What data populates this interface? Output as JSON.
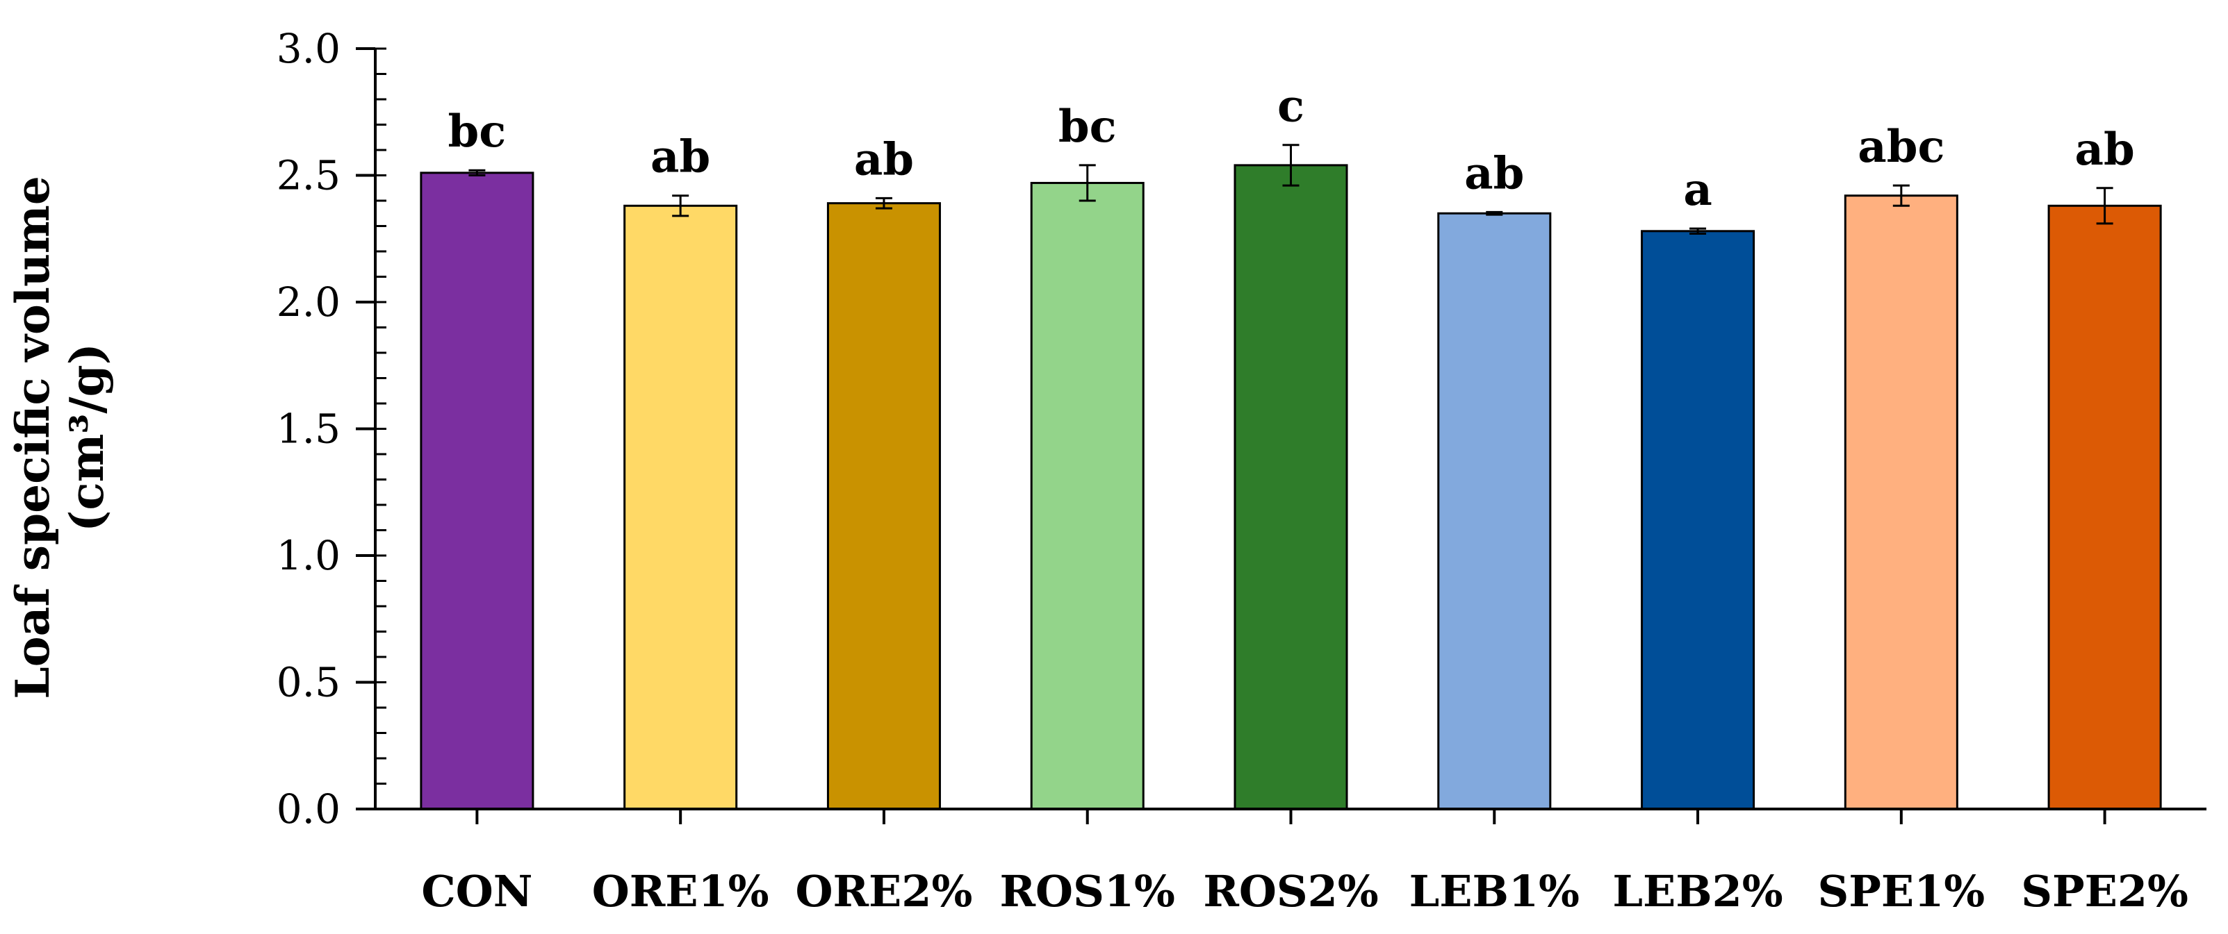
{
  "chart_data": {
    "type": "bar",
    "title": "",
    "xlabel": "",
    "ylabel": "Loaf specific volume",
    "ylabel_line2": "(cm³/g)",
    "ylim": [
      0,
      3.0
    ],
    "yticks": [
      "0.0",
      "0.5",
      "1.0",
      "1.5",
      "2.0",
      "2.5",
      "3.0"
    ],
    "grid": false,
    "categories": [
      "CON",
      "ORE1%",
      "ORE2%",
      "ROS1%",
      "ROS2%",
      "LEB1%",
      "LEB2%",
      "SPE1%",
      "SPE2%"
    ],
    "values": [
      2.51,
      2.38,
      2.39,
      2.47,
      2.54,
      2.35,
      2.28,
      2.42,
      2.38
    ],
    "errors": [
      0.01,
      0.04,
      0.02,
      0.07,
      0.08,
      0.005,
      0.01,
      0.04,
      0.07
    ],
    "significance": [
      "bc",
      "ab",
      "ab",
      "bc",
      "c",
      "ab",
      "a",
      "abc",
      "ab"
    ],
    "colors": [
      "#7B2FA0",
      "#FFD966",
      "#C99200",
      "#93D48A",
      "#2F7D2A",
      "#82A9DD",
      "#004E98",
      "#FFB07F",
      "#DC5A05"
    ]
  }
}
